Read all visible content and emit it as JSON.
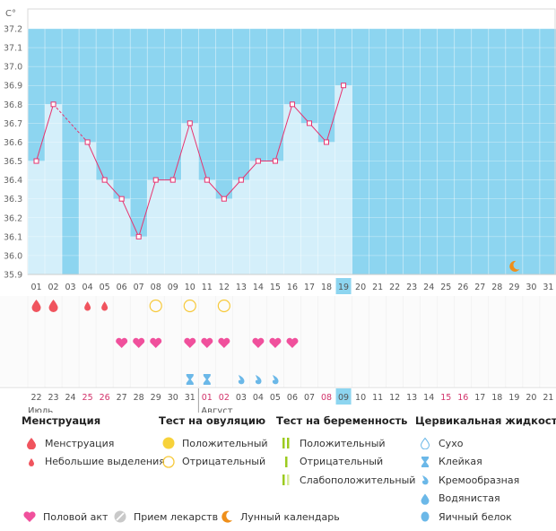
{
  "chart_data": {
    "type": "line",
    "unit_label": "C°",
    "ylim": [
      35.9,
      37.2
    ],
    "yticks": [
      "35.9",
      "36.0",
      "36.1",
      "36.2",
      "36.3",
      "36.4",
      "36.5",
      "36.6",
      "36.7",
      "36.8",
      "36.9",
      "37.0",
      "37.1",
      "37.2"
    ],
    "cycle_days": [
      "01",
      "02",
      "03",
      "04",
      "05",
      "06",
      "07",
      "08",
      "09",
      "10",
      "11",
      "12",
      "13",
      "14",
      "15",
      "16",
      "17",
      "18",
      "19",
      "20",
      "21",
      "22",
      "23",
      "24",
      "25",
      "26",
      "27",
      "28",
      "29",
      "30",
      "31"
    ],
    "current_day": "19",
    "temperatures": [
      36.5,
      36.8,
      null,
      36.6,
      36.4,
      36.3,
      36.1,
      36.4,
      36.4,
      36.7,
      36.4,
      36.3,
      36.4,
      36.5,
      36.5,
      36.8,
      36.7,
      36.6,
      36.9,
      null,
      null,
      null,
      null,
      null,
      null,
      null,
      null,
      null,
      null,
      null,
      null
    ],
    "calendar_dates": [
      "22",
      "23",
      "24",
      "25",
      "26",
      "27",
      "28",
      "29",
      "30",
      "31",
      "01",
      "02",
      "03",
      "04",
      "05",
      "06",
      "07",
      "08",
      "09",
      "10",
      "11",
      "12",
      "13",
      "14",
      "15",
      "16",
      "17",
      "18",
      "19",
      "20",
      "21"
    ],
    "weekend_dates": [
      "25",
      "26",
      "01",
      "02",
      "08",
      "09",
      "15",
      "16"
    ],
    "today_date": "09",
    "month_labels": {
      "first": "Июль",
      "second": "Август"
    },
    "markers": {
      "menstruation": [
        1,
        2
      ],
      "spotting": [
        4,
        5
      ],
      "ovulation_test_negative": [
        8,
        10,
        12
      ],
      "intercourse": [
        6,
        7,
        8,
        10,
        11,
        12,
        14,
        15,
        16
      ],
      "cervical_sticky": [
        10,
        11
      ],
      "cervical_watery": [
        13,
        14,
        15
      ],
      "lunar": [
        29
      ]
    },
    "colors": {
      "bar": "#d4effa",
      "background": "#8dd5f0",
      "line": "#e8336f",
      "drop": "#f0545e",
      "heart": "#f0509c",
      "ovulation_ring": "#f7c93a",
      "cervical": "#6bb8e8",
      "moon": "#ef8f1a"
    }
  },
  "legend": {
    "menstruation": {
      "title": "Менструация",
      "items": [
        "Менструация",
        "Небольшие выделения"
      ]
    },
    "ovulation_test": {
      "title": "Тест на овуляцию",
      "items": [
        "Положительный",
        "Отрицательный"
      ]
    },
    "pregnancy_test": {
      "title": "Тест на беременность",
      "items": [
        "Положительный",
        "Отрицательный",
        "Слабоположительный"
      ]
    },
    "cervical": {
      "title": "Цервикальная жидкость",
      "items": [
        "Сухо",
        "Клейкая",
        "Кремообразная",
        "Водянистая",
        "Яичный белок"
      ]
    },
    "bottom": {
      "intercourse": "Половой акт",
      "medication": "Прием лекарств",
      "lunar": "Лунный календарь"
    }
  },
  "icon_names": [
    "drop-icon",
    "small-drop-icon",
    "circle-icon",
    "ring-icon",
    "bar-icon",
    "heart-icon",
    "pill-icon",
    "moon-icon"
  ]
}
